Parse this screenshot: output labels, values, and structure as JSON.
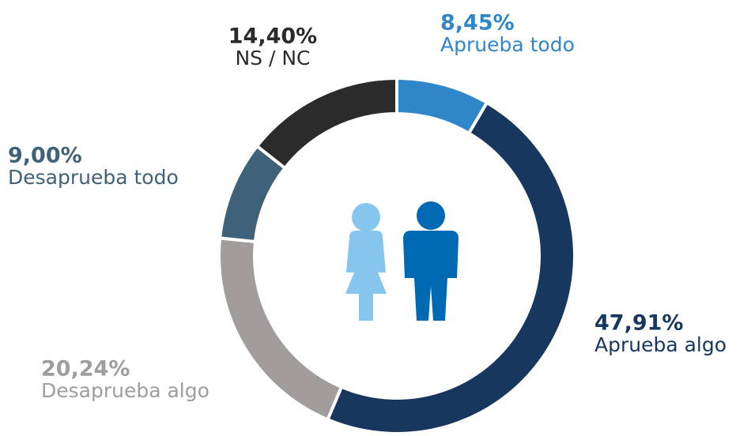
{
  "chart_data": {
    "type": "donut",
    "categories": [
      "Aprueba todo",
      "Aprueba algo",
      "Desaprueba algo",
      "Desaprueba todo",
      "NS / NC"
    ],
    "values": [
      8.45,
      47.91,
      20.24,
      9.0,
      14.4
    ],
    "value_labels": [
      "8,45%",
      "47,91%",
      "20,24%",
      "9,00%",
      "14,40%"
    ],
    "colors": [
      "#2f87c9",
      "#17375e",
      "#a09d9c",
      "#3f6278",
      "#2b2b2b"
    ],
    "label_colors": [
      "#2f87c9",
      "#17375e",
      "#a09d9c",
      "#3f6278",
      "#2b2b2b"
    ]
  }
}
